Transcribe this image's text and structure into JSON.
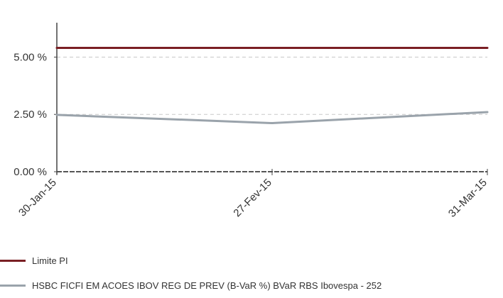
{
  "chart_data": {
    "type": "line",
    "categories": [
      "30-Jan-15",
      "27-Fev-15",
      "31-Mar-15"
    ],
    "y_tick_labels": [
      "0.00 %",
      "2.50 %",
      "5.00 %"
    ],
    "y_ticks": [
      0,
      2.5,
      5
    ],
    "ylim": [
      0,
      6.5
    ],
    "grid": "horizontal-dashed",
    "legend_position": "bottom",
    "series": [
      {
        "name": "Limite PI",
        "values": [
          5.4,
          5.4,
          5.4
        ],
        "color": "#7a1f24"
      },
      {
        "name": "HSBC FICFI EM ACOES IBOV REG DE PREV (B-VaR %) BVaR RBS Ibovespa - 252",
        "values": [
          2.48,
          2.12,
          2.6
        ],
        "color": "#9aa3ab"
      }
    ]
  }
}
